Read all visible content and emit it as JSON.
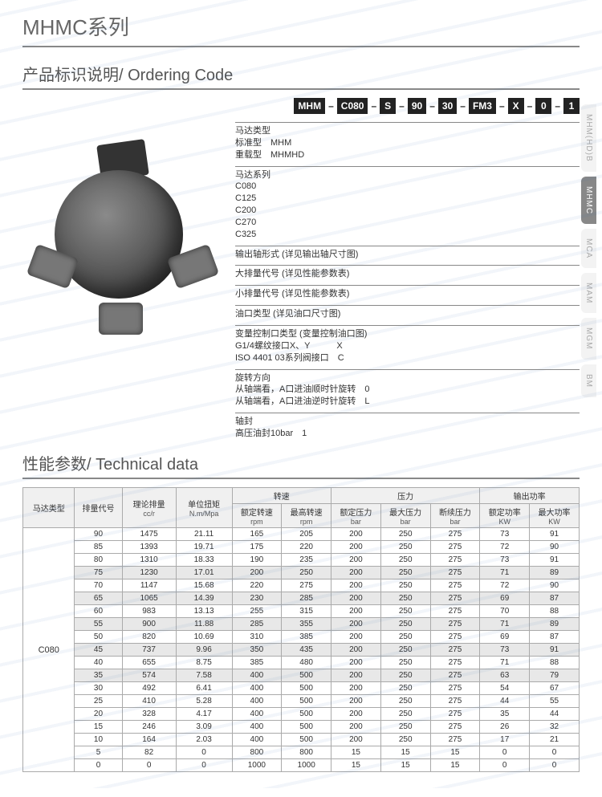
{
  "titles": {
    "series": "MHMC系列",
    "ordering": "产品标识说明/ Ordering Code",
    "techdata": "性能参数/ Technical data"
  },
  "code_boxes": [
    "MHM",
    "C080",
    "S",
    "90",
    "30",
    "FM3",
    "X",
    "0",
    "1"
  ],
  "explain": {
    "motorType": {
      "hd": "马达类型",
      "lines": [
        "标准型　MHM",
        "重载型　MHMHD"
      ]
    },
    "series": {
      "hd": "马达系列",
      "lines": [
        "C080",
        "C125",
        "C200",
        "C270",
        "C325"
      ]
    },
    "shaftForm": {
      "hd": "输出轴形式 (详见输出轴尺寸图)"
    },
    "dispLarge": {
      "hd": "大排量代号 (详见性能参数表)"
    },
    "dispSmall": {
      "hd": "小排量代号 (详见性能参数表)"
    },
    "portType": {
      "hd": "油口类型 (详见油口尺寸图)"
    },
    "varCtrl": {
      "hd": "变量控制口类型 (变量控制油口图)",
      "lines": [
        "G1/4螺纹接口X、Y　　　X",
        "ISO 4401 03系列阀接口　C"
      ]
    },
    "rotDir": {
      "hd": "旋转方向",
      "lines": [
        "从轴端看，A口进油顺时针旋转　0",
        "从轴端看，A口进油逆时针旋转　L"
      ]
    },
    "shaftSeal": {
      "hd": "轴封",
      "lines": [
        "高压油封10bar　1"
      ]
    }
  },
  "sidetabs": [
    {
      "label": "MHM(HD)B",
      "active": false
    },
    {
      "label": "MHMC",
      "active": true
    },
    {
      "label": "MCA",
      "active": false
    },
    {
      "label": "MAM",
      "active": false
    },
    {
      "label": "MGM",
      "active": false
    },
    {
      "label": "BM",
      "active": false
    }
  ],
  "table": {
    "top_headers": {
      "motorType": "马达类型",
      "dispCode": "排量代号",
      "theoDisp": "理论排量",
      "unitTorque": "单位扭矩",
      "speed": "转速",
      "pressure": "压力",
      "power": "输出功率"
    },
    "sub_headers": {
      "theoDisp_u": "cc/r",
      "unitTorque_u": "N.m/Mpa",
      "ratedSpeed": "额定转速",
      "ratedSpeed_u": "rpm",
      "maxSpeed": "最高转速",
      "maxSpeed_u": "rpm",
      "ratedPress": "额定压力",
      "ratedPress_u": "bar",
      "maxPress": "最大压力",
      "maxPress_u": "bar",
      "intPress": "断续压力",
      "intPress_u": "bar",
      "ratedPow": "额定功率",
      "ratedPow_u": "KW",
      "maxPow": "最大功率",
      "maxPow_u": "KW"
    },
    "model": "C080",
    "rows": [
      [
        "90",
        "1475",
        "21.11",
        "165",
        "205",
        "200",
        "250",
        "275",
        "73",
        "91"
      ],
      [
        "85",
        "1393",
        "19.71",
        "175",
        "220",
        "200",
        "250",
        "275",
        "72",
        "90"
      ],
      [
        "80",
        "1310",
        "18.33",
        "190",
        "235",
        "200",
        "250",
        "275",
        "73",
        "91"
      ],
      [
        "75",
        "1230",
        "17.01",
        "200",
        "250",
        "200",
        "250",
        "275",
        "71",
        "89"
      ],
      [
        "70",
        "1147",
        "15.68",
        "220",
        "275",
        "200",
        "250",
        "275",
        "72",
        "90"
      ],
      [
        "65",
        "1065",
        "14.39",
        "230",
        "285",
        "200",
        "250",
        "275",
        "69",
        "87"
      ],
      [
        "60",
        "983",
        "13.13",
        "255",
        "315",
        "200",
        "250",
        "275",
        "70",
        "88"
      ],
      [
        "55",
        "900",
        "11.88",
        "285",
        "355",
        "200",
        "250",
        "275",
        "71",
        "89"
      ],
      [
        "50",
        "820",
        "10.69",
        "310",
        "385",
        "200",
        "250",
        "275",
        "69",
        "87"
      ],
      [
        "45",
        "737",
        "9.96",
        "350",
        "435",
        "200",
        "250",
        "275",
        "73",
        "91"
      ],
      [
        "40",
        "655",
        "8.75",
        "385",
        "480",
        "200",
        "250",
        "275",
        "71",
        "88"
      ],
      [
        "35",
        "574",
        "7.58",
        "400",
        "500",
        "200",
        "250",
        "275",
        "63",
        "79"
      ],
      [
        "30",
        "492",
        "6.41",
        "400",
        "500",
        "200",
        "250",
        "275",
        "54",
        "67"
      ],
      [
        "25",
        "410",
        "5.28",
        "400",
        "500",
        "200",
        "250",
        "275",
        "44",
        "55"
      ],
      [
        "20",
        "328",
        "4.17",
        "400",
        "500",
        "200",
        "250",
        "275",
        "35",
        "44"
      ],
      [
        "15",
        "246",
        "3.09",
        "400",
        "500",
        "200",
        "250",
        "275",
        "26",
        "32"
      ],
      [
        "10",
        "164",
        "2.03",
        "400",
        "500",
        "200",
        "250",
        "275",
        "17",
        "21"
      ],
      [
        "5",
        "82",
        "0",
        "800",
        "800",
        "15",
        "15",
        "15",
        "0",
        "0"
      ],
      [
        "0",
        "0",
        "0",
        "1000",
        "1000",
        "15",
        "15",
        "15",
        "0",
        "0"
      ]
    ],
    "alt_rows": [
      3,
      5,
      7,
      9,
      11
    ],
    "col_widths": [
      "48px",
      "44px",
      "50px",
      "52px",
      "46px",
      "46px",
      "46px",
      "46px",
      "46px",
      "46px",
      "46px"
    ],
    "border_color": "#aaaaaa",
    "header_bg": "#f0f0f0",
    "alt_bg": "#e8e8e8",
    "font_size": 10
  },
  "colors": {
    "page_bg": "#ffffff",
    "title_color": "#666666",
    "rule_color": "#888888",
    "tab_inactive_bg": "#f3f3f3",
    "tab_active_bg": "#888888"
  }
}
